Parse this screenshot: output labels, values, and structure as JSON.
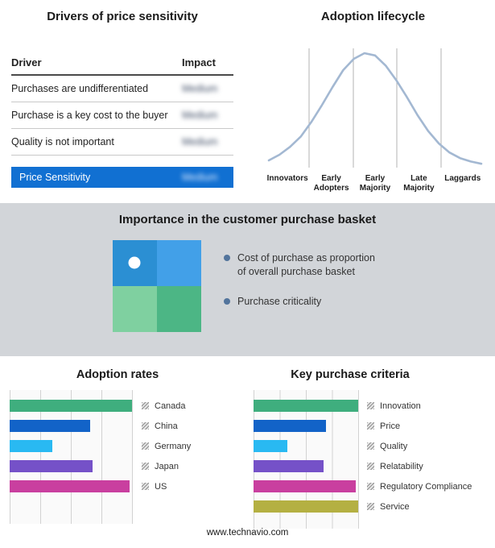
{
  "drivers": {
    "title": "Drivers of price sensitivity",
    "col_driver": "Driver",
    "col_impact": "Impact",
    "rows": [
      {
        "driver": "Purchases are undifferentiated",
        "impact": "Medium"
      },
      {
        "driver": "Purchase is a key cost to the buyer",
        "impact": "Medium"
      },
      {
        "driver": "Quality is not important",
        "impact": "Medium"
      }
    ],
    "summary": {
      "label": "Price Sensitivity",
      "impact": "Medium"
    },
    "summary_color": "#1170d2"
  },
  "lifecycle": {
    "title": "Adoption lifecycle",
    "curve_color": "#a3b8d2",
    "stages": [
      "Innovators",
      "Early\nAdopters",
      "Early\nMajority",
      "Late\nMajority",
      "Laggards"
    ]
  },
  "basket": {
    "title": "Importance in the customer purchase basket",
    "legend": [
      "Cost of purchase as proportion of overall purchase basket",
      "Purchase criticality"
    ],
    "quadrant_colors": [
      "#2b8fd3",
      "#42a0e8",
      "#7fd0a0",
      "#4cb685"
    ]
  },
  "footer": {
    "url": "www.technavio.com"
  },
  "chart_data": [
    {
      "type": "line",
      "title": "Adoption lifecycle",
      "xlabel": "",
      "ylabel": "",
      "x_categories": [
        "Innovators",
        "Early Adopters",
        "Early Majority",
        "Late Majority",
        "Laggards"
      ],
      "grid": true,
      "legend_position": "none",
      "description": "Bell-shaped adoption curve peaking near Early Majority",
      "curve_points": [
        [
          0,
          5
        ],
        [
          5,
          10
        ],
        [
          10,
          17
        ],
        [
          15,
          26
        ],
        [
          20,
          39
        ],
        [
          25,
          54
        ],
        [
          30,
          70
        ],
        [
          35,
          85
        ],
        [
          40,
          95
        ],
        [
          45,
          100
        ],
        [
          50,
          98
        ],
        [
          55,
          89
        ],
        [
          60,
          76
        ],
        [
          65,
          61
        ],
        [
          70,
          45
        ],
        [
          75,
          31
        ],
        [
          80,
          20
        ],
        [
          85,
          12
        ],
        [
          90,
          7
        ],
        [
          95,
          4
        ],
        [
          100,
          2
        ]
      ]
    },
    {
      "type": "bar",
      "orientation": "horizontal",
      "title": "Adoption rates",
      "categories": [
        "Canada",
        "China",
        "Germany",
        "Japan",
        "US"
      ],
      "values": [
        100,
        66,
        35,
        68,
        98
      ],
      "colors": [
        "#3fae7e",
        "#1263c8",
        "#29b9f2",
        "#7551c8",
        "#c93f9f"
      ],
      "xlim": [
        0,
        100
      ],
      "grid": true,
      "legend_position": "right"
    },
    {
      "type": "bar",
      "orientation": "horizontal",
      "title": "Key purchase criteria",
      "categories": [
        "Innovation",
        "Price",
        "Quality",
        "Relatability",
        "Regulatory Compliance",
        "Service"
      ],
      "values": [
        100,
        69,
        32,
        67,
        98,
        100
      ],
      "colors": [
        "#3fae7e",
        "#1263c8",
        "#29b9f2",
        "#7551c8",
        "#c93f9f",
        "#b4b042"
      ],
      "xlim": [
        0,
        100
      ],
      "grid": true,
      "legend_position": "right"
    }
  ]
}
